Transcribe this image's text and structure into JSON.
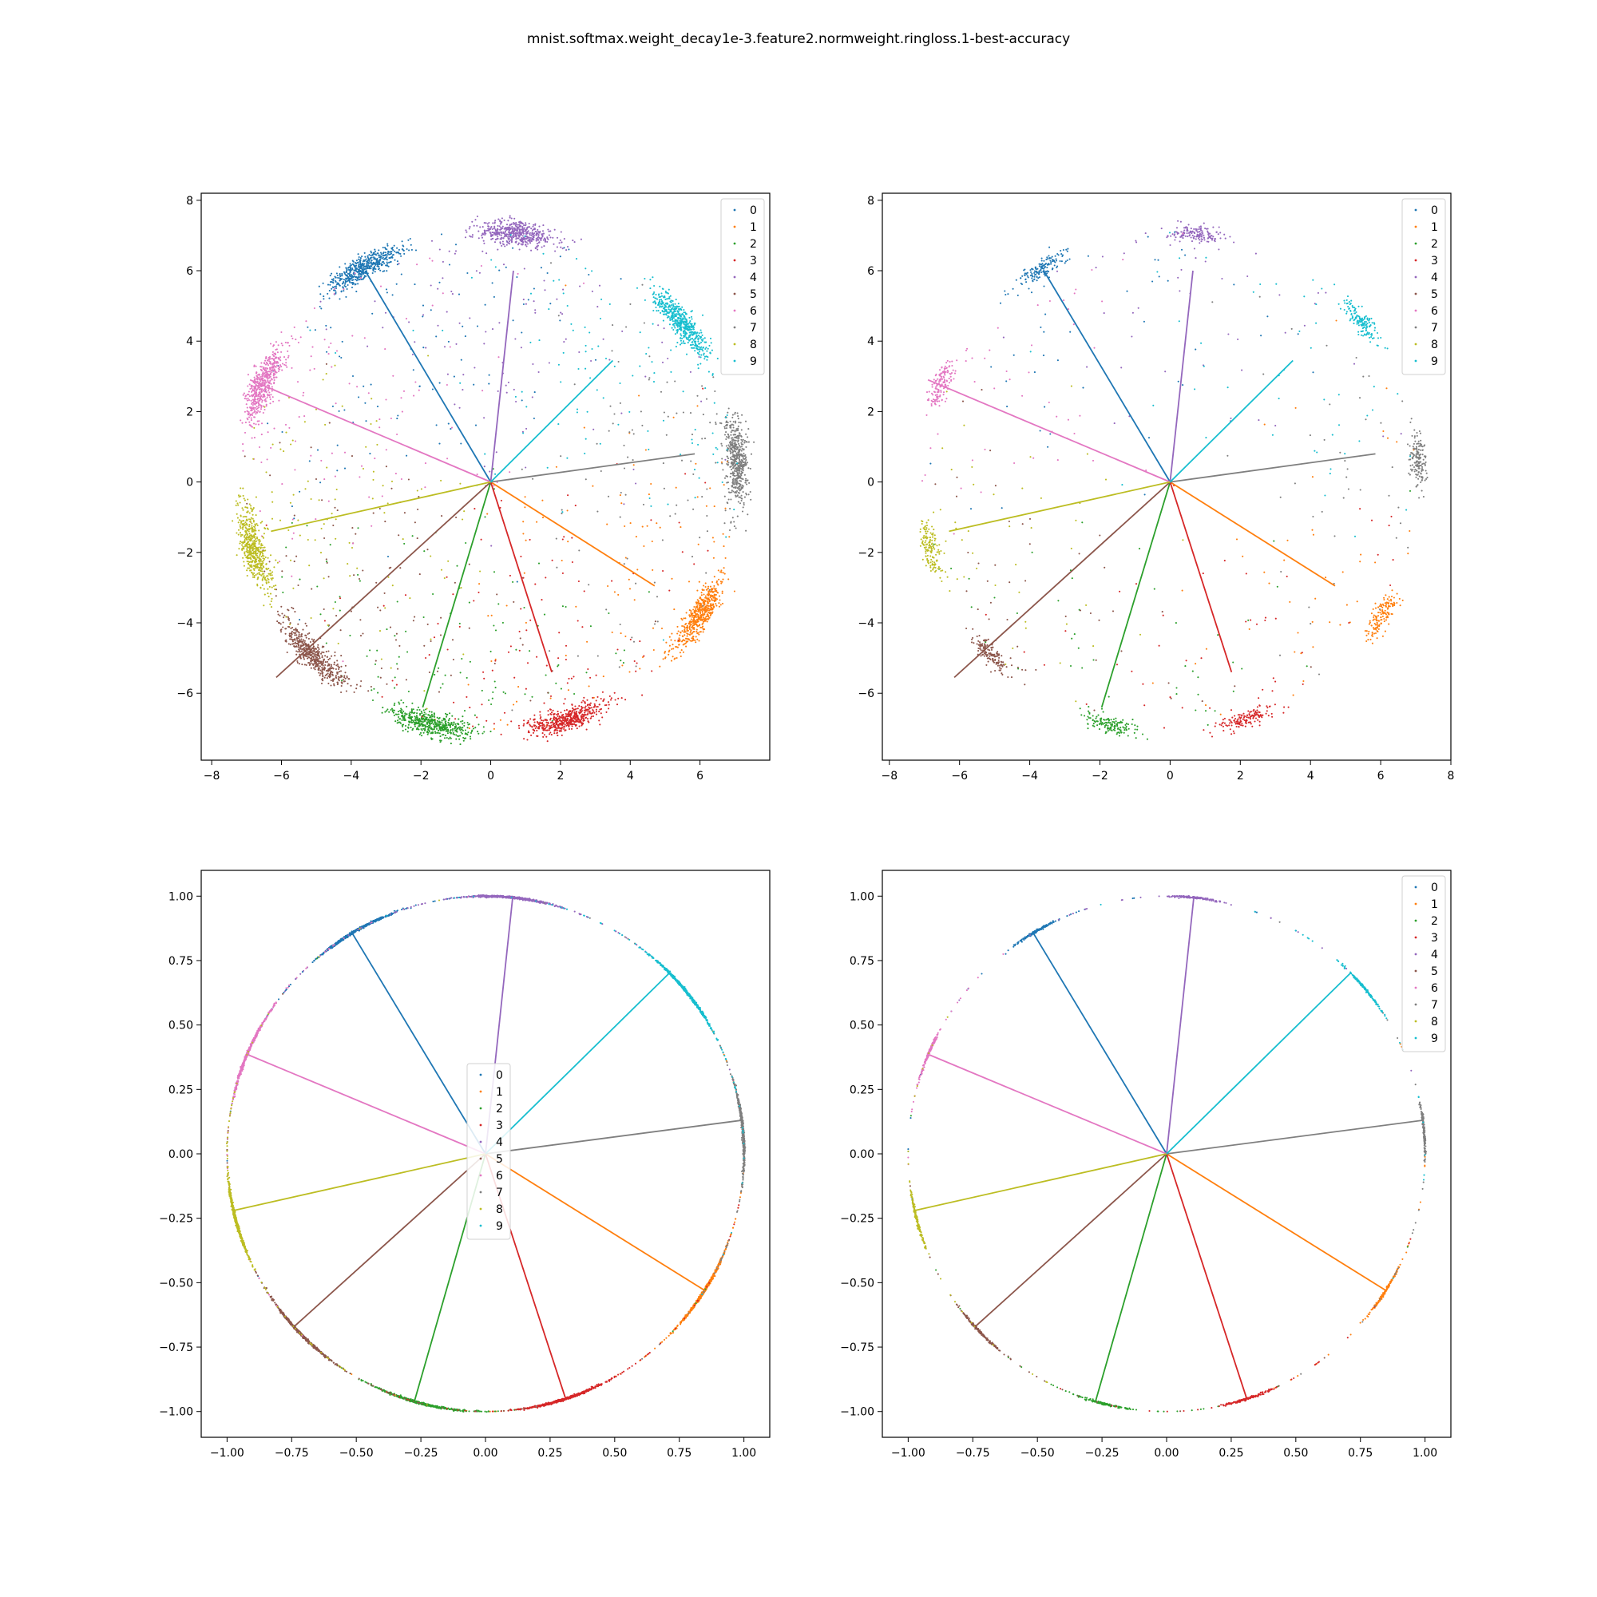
{
  "figure": {
    "title": "mnist.softmax.weight_decay1e-3.feature2.normweight.ringloss.1-best-accuracy"
  },
  "colors": [
    "#1f77b4",
    "#ff7f0e",
    "#2ca02c",
    "#d62728",
    "#9467bd",
    "#8c564b",
    "#e377c2",
    "#7f7f7f",
    "#bcbd22",
    "#17becf"
  ],
  "chart_data": [
    {
      "type": "scatter",
      "panel": "top-left",
      "xlim": [
        -8.3,
        8.0
      ],
      "ylim": [
        -7.9,
        8.2
      ],
      "xticks": [
        -8,
        -6,
        -4,
        -2,
        0,
        2,
        4,
        6
      ],
      "yticks": [
        -6,
        -4,
        -2,
        0,
        2,
        4,
        6,
        8
      ],
      "xtick_labels": [
        "−8",
        "−6",
        "−4",
        "−2",
        "0",
        "2",
        "4",
        "6"
      ],
      "ytick_labels": [
        "−6",
        "−4",
        "−2",
        "0",
        "2",
        "4",
        "6",
        "8"
      ],
      "legend": {
        "placement": "top-right",
        "entries": [
          "0",
          "1",
          "2",
          "3",
          "4",
          "5",
          "6",
          "7",
          "8",
          "9"
        ]
      },
      "grid": false,
      "cluster_radius": 7.1,
      "scatter_density": "dense",
      "series": [
        {
          "name": "0",
          "center_deg": 121,
          "weight_end": [
            -3.6,
            6.0
          ]
        },
        {
          "name": "1",
          "center_deg": -32,
          "weight_end": [
            4.7,
            -2.95
          ]
        },
        {
          "name": "2",
          "center_deg": -104,
          "weight_end": [
            -1.95,
            -6.4
          ]
        },
        {
          "name": "3",
          "center_deg": -72,
          "weight_end": [
            1.75,
            -5.4
          ]
        },
        {
          "name": "4",
          "center_deg": 84,
          "weight_end": [
            0.65,
            6.0
          ]
        },
        {
          "name": "5",
          "center_deg": -136,
          "weight_end": [
            -6.15,
            -5.55
          ]
        },
        {
          "name": "6",
          "center_deg": 157,
          "weight_end": [
            -6.9,
            2.9
          ]
        },
        {
          "name": "7",
          "center_deg": 5,
          "weight_end": [
            5.85,
            0.8
          ]
        },
        {
          "name": "8",
          "center_deg": 195,
          "weight_end": [
            -6.3,
            -1.4
          ]
        },
        {
          "name": "9",
          "center_deg": 40,
          "weight_end": [
            3.5,
            3.45
          ]
        }
      ]
    },
    {
      "type": "scatter",
      "panel": "top-right",
      "xlim": [
        -8.2,
        8.0
      ],
      "ylim": [
        -7.9,
        8.2
      ],
      "xticks": [
        -8,
        -6,
        -4,
        -2,
        0,
        2,
        4,
        6,
        8
      ],
      "yticks": [
        -6,
        -4,
        -2,
        0,
        2,
        4,
        6,
        8
      ],
      "xtick_labels": [
        "−8",
        "−6",
        "−4",
        "−2",
        "0",
        "2",
        "4",
        "6",
        "8"
      ],
      "ytick_labels": [
        "−6",
        "−4",
        "−2",
        "0",
        "2",
        "4",
        "6",
        "8"
      ],
      "legend": {
        "placement": "top-right",
        "entries": [
          "0",
          "1",
          "2",
          "3",
          "4",
          "5",
          "6",
          "7",
          "8",
          "9"
        ]
      },
      "grid": false,
      "cluster_radius": 7.1,
      "scatter_density": "sparse",
      "series": [
        {
          "name": "0",
          "center_deg": 121,
          "weight_end": [
            -3.6,
            6.0
          ]
        },
        {
          "name": "1",
          "center_deg": -32,
          "weight_end": [
            4.7,
            -2.95
          ]
        },
        {
          "name": "2",
          "center_deg": -104,
          "weight_end": [
            -1.95,
            -6.4
          ]
        },
        {
          "name": "3",
          "center_deg": -72,
          "weight_end": [
            1.75,
            -5.4
          ]
        },
        {
          "name": "4",
          "center_deg": 84,
          "weight_end": [
            0.65,
            6.0
          ]
        },
        {
          "name": "5",
          "center_deg": -136,
          "weight_end": [
            -6.15,
            -5.55
          ]
        },
        {
          "name": "6",
          "center_deg": 157,
          "weight_end": [
            -6.9,
            2.9
          ]
        },
        {
          "name": "7",
          "center_deg": 5,
          "weight_end": [
            5.85,
            0.8
          ]
        },
        {
          "name": "8",
          "center_deg": 195,
          "weight_end": [
            -6.3,
            -1.4
          ]
        },
        {
          "name": "9",
          "center_deg": 40,
          "weight_end": [
            3.5,
            3.45
          ]
        }
      ]
    },
    {
      "type": "scatter",
      "panel": "bottom-left",
      "xlim": [
        -1.1,
        1.1
      ],
      "ylim": [
        -1.1,
        1.1
      ],
      "xticks": [
        -1.0,
        -0.75,
        -0.5,
        -0.25,
        0.0,
        0.25,
        0.5,
        0.75,
        1.0
      ],
      "yticks": [
        -1.0,
        -0.75,
        -0.5,
        -0.25,
        0.0,
        0.25,
        0.5,
        0.75,
        1.0
      ],
      "xtick_labels": [
        "−1.00",
        "−0.75",
        "−0.50",
        "−0.25",
        "0.00",
        "0.25",
        "0.50",
        "0.75",
        "1.00"
      ],
      "ytick_labels": [
        "−1.00",
        "−0.75",
        "−0.50",
        "−0.25",
        "0.00",
        "0.25",
        "0.50",
        "0.75",
        "1.00"
      ],
      "legend": {
        "placement": "center",
        "entries": [
          "0",
          "1",
          "2",
          "3",
          "4",
          "5",
          "6",
          "7",
          "8",
          "9"
        ]
      },
      "grid": false,
      "cluster_radius": 1.0,
      "scatter_density": "dense",
      "series": [
        {
          "name": "0",
          "center_deg": 121,
          "weight_end": [
            -0.515,
            0.855
          ]
        },
        {
          "name": "1",
          "center_deg": -32,
          "weight_end": [
            0.848,
            -0.53
          ]
        },
        {
          "name": "2",
          "center_deg": -104,
          "weight_end": [
            -0.275,
            -0.96
          ]
        },
        {
          "name": "3",
          "center_deg": -72,
          "weight_end": [
            0.31,
            -0.95
          ]
        },
        {
          "name": "4",
          "center_deg": 84,
          "weight_end": [
            0.105,
            0.993
          ]
        },
        {
          "name": "5",
          "center_deg": -136,
          "weight_end": [
            -0.74,
            -0.67
          ]
        },
        {
          "name": "6",
          "center_deg": 157,
          "weight_end": [
            -0.92,
            0.385
          ]
        },
        {
          "name": "7",
          "center_deg": 5,
          "weight_end": [
            0.99,
            0.13
          ]
        },
        {
          "name": "8",
          "center_deg": 195,
          "weight_end": [
            -0.975,
            -0.22
          ]
        },
        {
          "name": "9",
          "center_deg": 40,
          "weight_end": [
            0.71,
            0.7
          ]
        }
      ]
    },
    {
      "type": "scatter",
      "panel": "bottom-right",
      "xlim": [
        -1.1,
        1.1
      ],
      "ylim": [
        -1.1,
        1.1
      ],
      "xticks": [
        -1.0,
        -0.75,
        -0.5,
        -0.25,
        0.0,
        0.25,
        0.5,
        0.75,
        1.0
      ],
      "yticks": [
        -1.0,
        -0.75,
        -0.5,
        -0.25,
        0.0,
        0.25,
        0.5,
        0.75,
        1.0
      ],
      "xtick_labels": [
        "−1.00",
        "−0.75",
        "−0.50",
        "−0.25",
        "0.00",
        "0.25",
        "0.50",
        "0.75",
        "1.00"
      ],
      "ytick_labels": [
        "−1.00",
        "−0.75",
        "−0.50",
        "−0.25",
        "0.00",
        "0.25",
        "0.50",
        "0.75",
        "1.00"
      ],
      "legend": {
        "placement": "top-right",
        "entries": [
          "0",
          "1",
          "2",
          "3",
          "4",
          "5",
          "6",
          "7",
          "8",
          "9"
        ]
      },
      "grid": false,
      "cluster_radius": 1.0,
      "scatter_density": "sparse",
      "series": [
        {
          "name": "0",
          "center_deg": 121,
          "weight_end": [
            -0.515,
            0.855
          ]
        },
        {
          "name": "1",
          "center_deg": -32,
          "weight_end": [
            0.848,
            -0.53
          ]
        },
        {
          "name": "2",
          "center_deg": -104,
          "weight_end": [
            -0.275,
            -0.96
          ]
        },
        {
          "name": "3",
          "center_deg": -72,
          "weight_end": [
            0.31,
            -0.95
          ]
        },
        {
          "name": "4",
          "center_deg": 84,
          "weight_end": [
            0.105,
            0.993
          ]
        },
        {
          "name": "5",
          "center_deg": -136,
          "weight_end": [
            -0.74,
            -0.67
          ]
        },
        {
          "name": "6",
          "center_deg": 157,
          "weight_end": [
            -0.92,
            0.385
          ]
        },
        {
          "name": "7",
          "center_deg": 5,
          "weight_end": [
            0.99,
            0.13
          ]
        },
        {
          "name": "8",
          "center_deg": 195,
          "weight_end": [
            -0.975,
            -0.22
          ]
        },
        {
          "name": "9",
          "center_deg": 40,
          "weight_end": [
            0.71,
            0.7
          ]
        }
      ]
    }
  ]
}
